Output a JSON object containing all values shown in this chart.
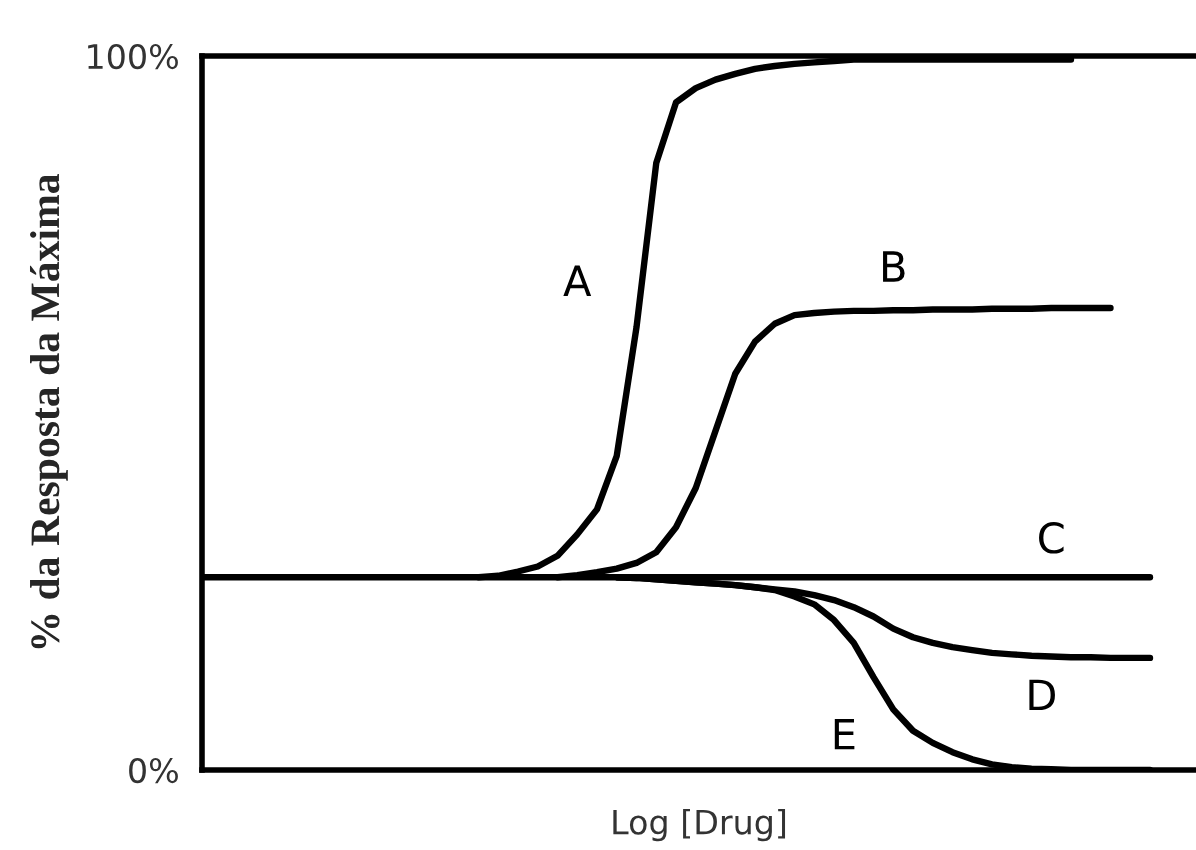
{
  "chart_data": {
    "type": "line",
    "xlabel": "Log [Drug]",
    "ylabel": "% da Resposta da Máxima",
    "categories": [
      null,
      null,
      null,
      null,
      null,
      null,
      null,
      null,
      null,
      null,
      null,
      null,
      null,
      null,
      null,
      null,
      null,
      null,
      null,
      null,
      null,
      null,
      null,
      null,
      null,
      null,
      null,
      null,
      null,
      null,
      null,
      null,
      null,
      null,
      null,
      null,
      null,
      null,
      null,
      null,
      null,
      null,
      null,
      null,
      null,
      null,
      null,
      null,
      null
    ],
    "series": [
      {
        "name": "A",
        "color": "#000000",
        "values": [
          null,
          null,
          null,
          null,
          null,
          null,
          null,
          null,
          null,
          null,
          null,
          null,
          null,
          null,
          27,
          27.2,
          27.8,
          28.5,
          30,
          33,
          36.5,
          44,
          62,
          85,
          93.5,
          95.5,
          96.7,
          97.5,
          98.2,
          98.6,
          98.9,
          99.1,
          99.3,
          99.5,
          99.5,
          99.5,
          99.5,
          99.5,
          99.5,
          99.5,
          99.5,
          99.5,
          99.5,
          99.5,
          99.5,
          null,
          null,
          null,
          null
        ]
      },
      {
        "name": "B",
        "color": "#000000",
        "values": [
          null,
          null,
          null,
          null,
          null,
          null,
          null,
          null,
          null,
          null,
          null,
          null,
          null,
          null,
          null,
          null,
          null,
          null,
          27,
          27.3,
          27.7,
          28.2,
          29,
          30.5,
          34,
          39.5,
          47.5,
          55.5,
          60,
          62.5,
          63.7,
          64,
          64.2,
          64.3,
          64.3,
          64.4,
          64.4,
          64.5,
          64.5,
          64.5,
          64.6,
          64.6,
          64.6,
          64.7,
          64.7,
          64.7,
          64.7,
          null,
          null
        ]
      },
      {
        "name": "C",
        "color": "#000000",
        "values": [
          27,
          27,
          27,
          27,
          27,
          27,
          27,
          27,
          27,
          27,
          27,
          27,
          27,
          27,
          27,
          27,
          27,
          27,
          27,
          27,
          27,
          27,
          27,
          27,
          27,
          27,
          27,
          27,
          27,
          27,
          27,
          27,
          27,
          27,
          27,
          27,
          27,
          27,
          27,
          27,
          27,
          27,
          27,
          27,
          27,
          27,
          27,
          27,
          27
        ]
      },
      {
        "name": "D",
        "color": "#000000",
        "values": [
          null,
          null,
          null,
          null,
          null,
          null,
          null,
          null,
          null,
          null,
          null,
          null,
          null,
          null,
          null,
          null,
          null,
          null,
          null,
          null,
          null,
          27,
          26.9,
          26.7,
          26.5,
          26.3,
          26.1,
          25.9,
          25.6,
          25.3,
          25,
          24.5,
          23.8,
          22.8,
          21.5,
          19.8,
          18.6,
          17.8,
          17.2,
          16.8,
          16.4,
          16.2,
          16,
          15.9,
          15.8,
          15.8,
          15.7,
          15.7,
          15.7
        ]
      },
      {
        "name": "E",
        "color": "#000000",
        "values": [
          null,
          null,
          null,
          null,
          null,
          null,
          null,
          null,
          null,
          null,
          null,
          null,
          null,
          null,
          null,
          null,
          null,
          null,
          null,
          null,
          null,
          27,
          26.9,
          26.7,
          26.5,
          26.3,
          26.1,
          25.9,
          25.6,
          25.2,
          24.3,
          23.2,
          21,
          17.8,
          13,
          8.5,
          5.5,
          3.8,
          2.5,
          1.5,
          0.8,
          0.4,
          0.2,
          0.1,
          0,
          0,
          0,
          0,
          0
        ]
      }
    ],
    "ylim": [
      0,
      100
    ],
    "yticks": [
      {
        "value": 0,
        "label": "0%"
      },
      {
        "value": 100,
        "label": "100%"
      }
    ],
    "tick_labels": "y",
    "grid": false,
    "legend": false,
    "marker": "none",
    "line_style": "solid"
  }
}
